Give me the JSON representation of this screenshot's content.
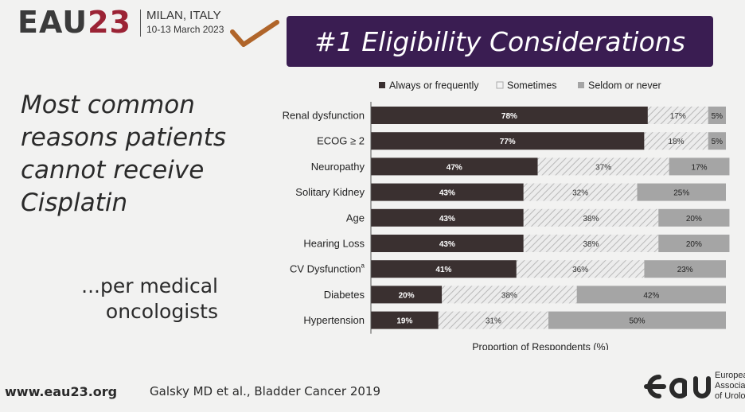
{
  "header": {
    "logo_eau": "EAU",
    "logo_year": "23",
    "city": "MILAN, ITALY",
    "dates": "10-13 March 2023",
    "title": "#1 Eligibility Considerations"
  },
  "left": {
    "lead_lines": [
      "Most common",
      "reasons patients",
      "cannot receive",
      "Cisplatin"
    ],
    "sub_lines": [
      "...per medical",
      "oncologists"
    ]
  },
  "footer": {
    "url": "www.eau23.org",
    "citation": "Galsky MD et al., Bladder Cancer 2019",
    "org_lines": [
      "European",
      "Associatio",
      "of Urolog"
    ]
  },
  "colors": {
    "title_bar": "#3a1d52",
    "always": "#3a3030",
    "sometimes": "#ececec",
    "seldom": "#a5a5a5",
    "check": "#b0652a",
    "year": "#9b2335"
  },
  "chart_data": {
    "type": "bar",
    "orientation": "horizontal",
    "stacked": true,
    "xlabel": "Proportion of Respondents (%)",
    "xlim": [
      0,
      100
    ],
    "legend_position": "top",
    "categories": [
      "Renal dysfunction",
      "ECOG ≥ 2",
      "Neuropathy",
      "Solitary Kidney",
      "Age",
      "Hearing Loss",
      "CV Dysfunction",
      "Diabetes",
      "Hypertension"
    ],
    "category_superscripts": [
      "",
      "",
      "",
      "",
      "",
      "",
      "a",
      "",
      ""
    ],
    "series": [
      {
        "name": "Always or frequently",
        "values": [
          78,
          77,
          47,
          43,
          43,
          43,
          41,
          20,
          19
        ]
      },
      {
        "name": "Sometimes",
        "values": [
          17,
          18,
          37,
          32,
          38,
          38,
          36,
          38,
          31
        ]
      },
      {
        "name": "Seldom or never",
        "values": [
          5,
          5,
          17,
          25,
          20,
          20,
          23,
          42,
          50
        ]
      }
    ],
    "value_labels": [
      [
        "78%",
        "17%",
        "5%"
      ],
      [
        "77%",
        "18%",
        "5%"
      ],
      [
        "47%",
        "37%",
        "17%"
      ],
      [
        "43%",
        "32%",
        "25%"
      ],
      [
        "43%",
        "38%",
        "20%"
      ],
      [
        "43%",
        "38%",
        "20%"
      ],
      [
        "41%",
        "36%",
        "23%"
      ],
      [
        "20%",
        "38%",
        "42%"
      ],
      [
        "19%",
        "31%",
        "50%"
      ]
    ]
  }
}
